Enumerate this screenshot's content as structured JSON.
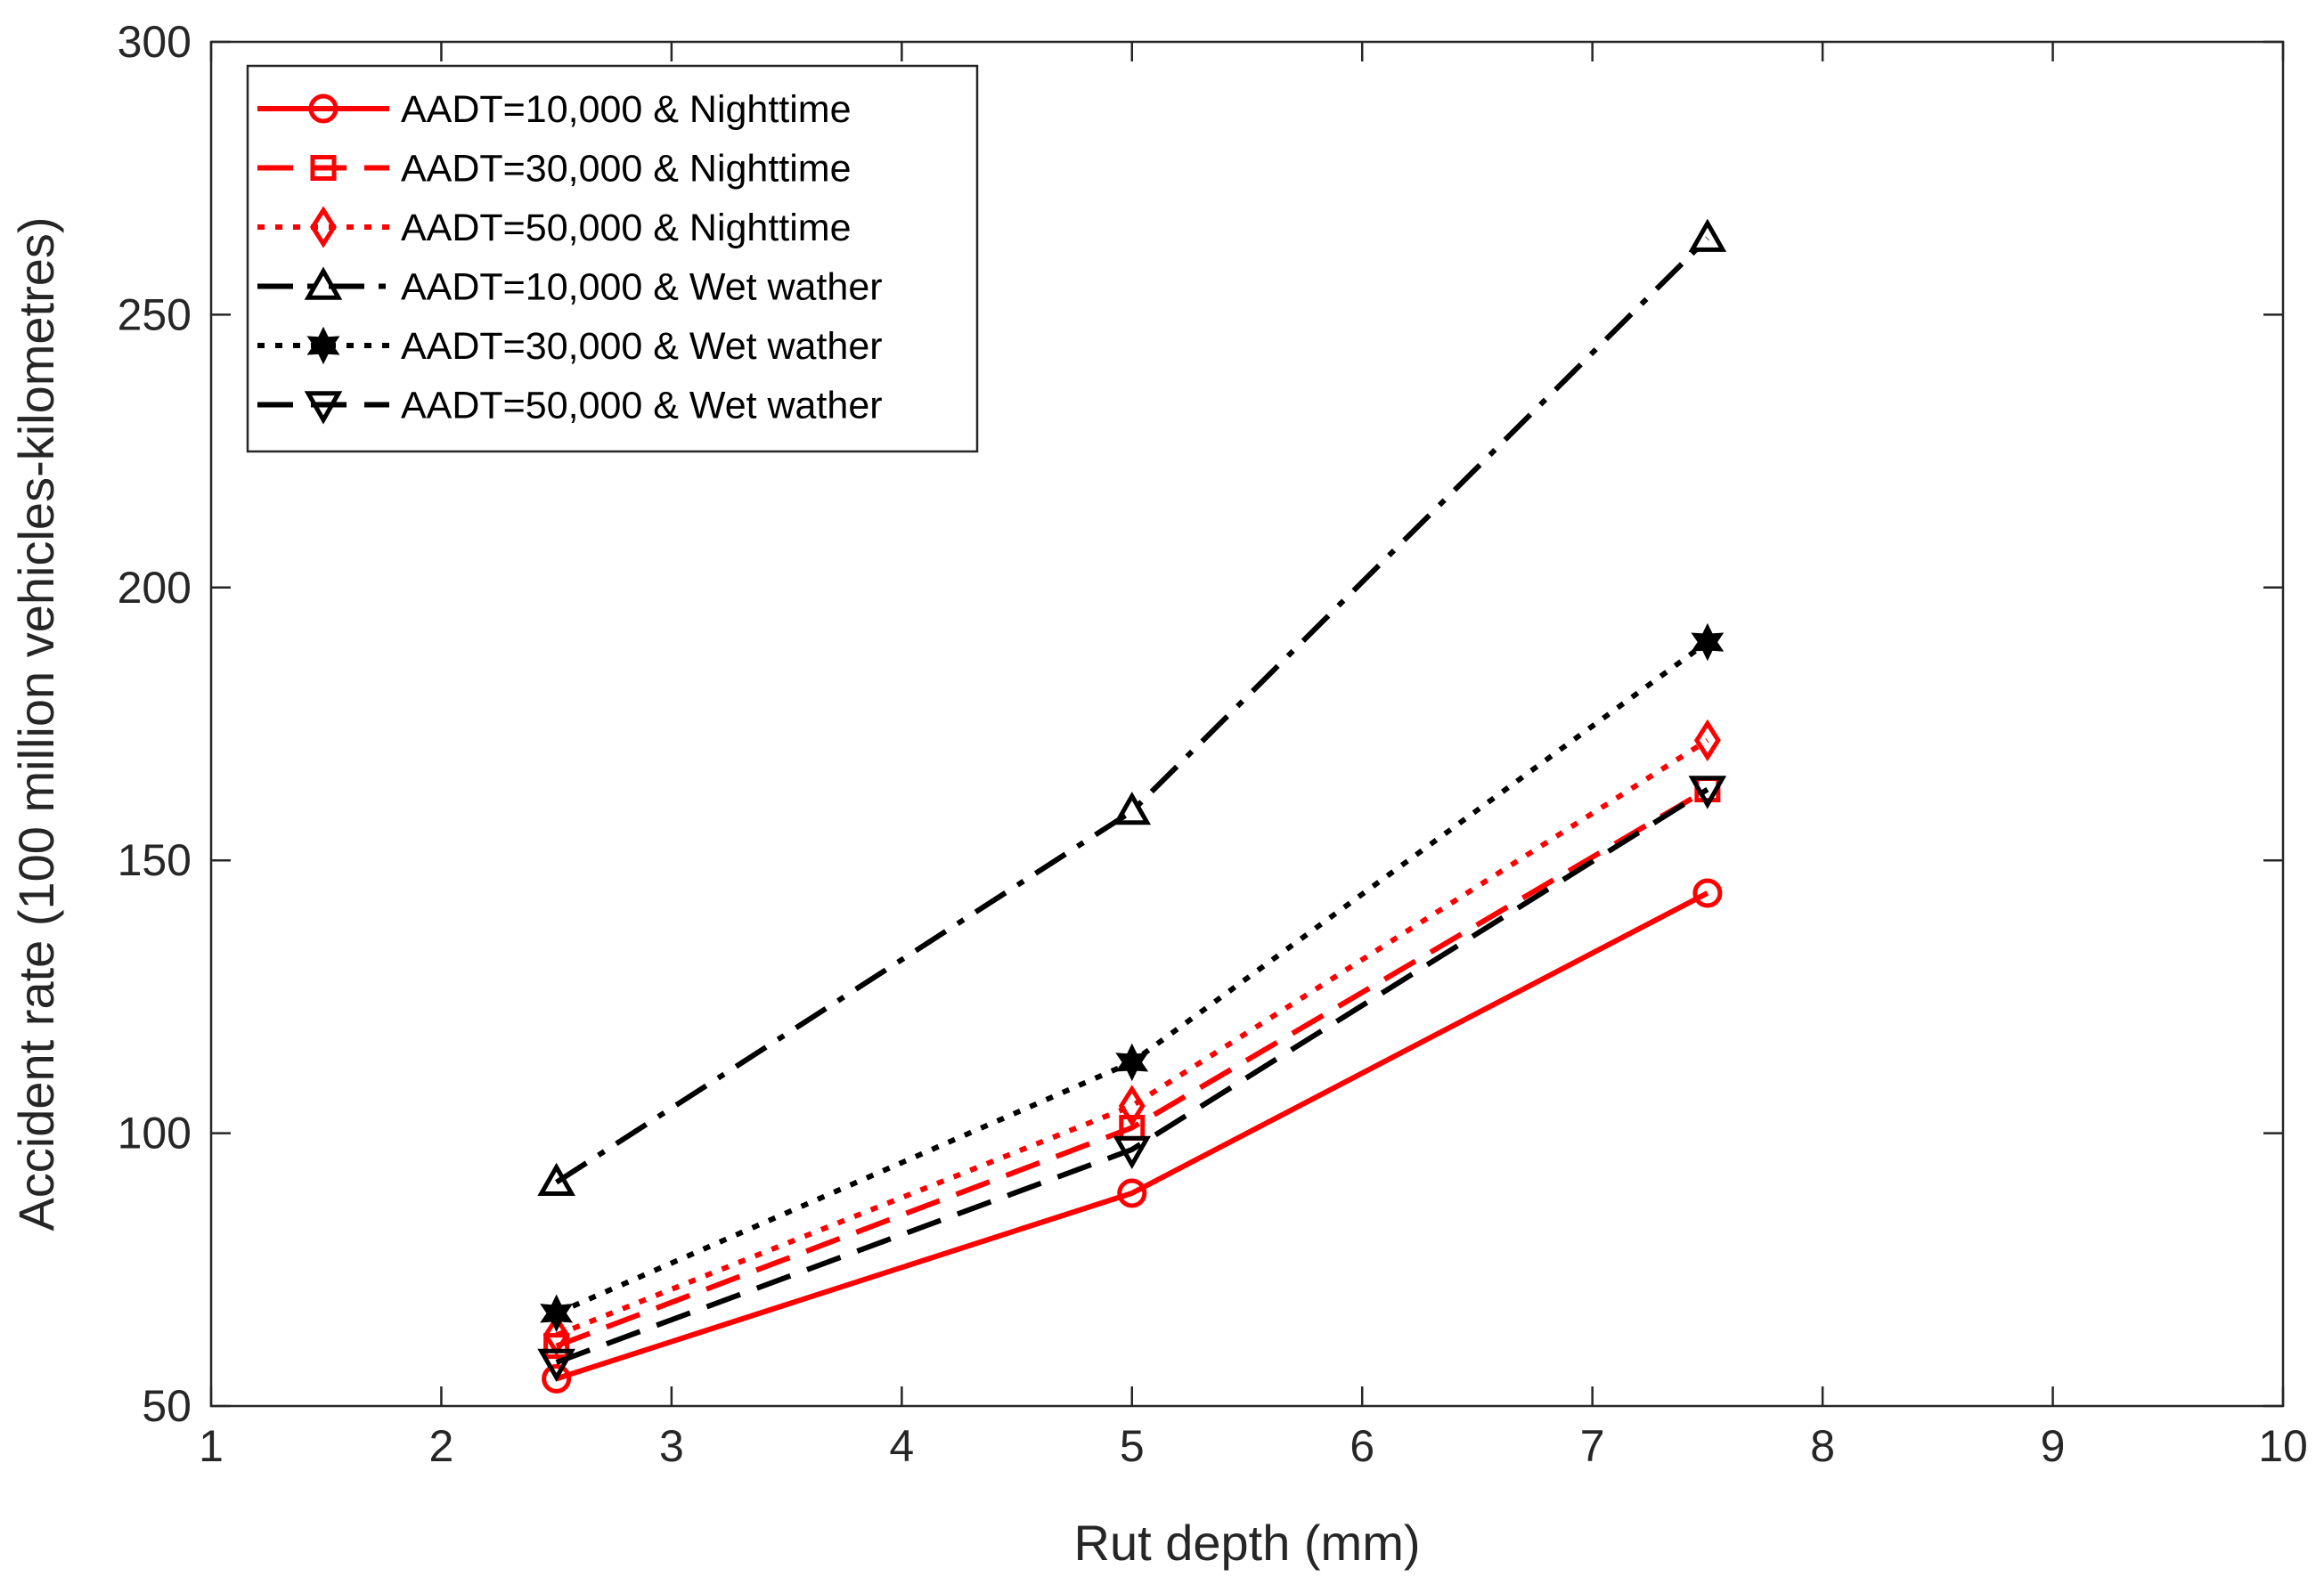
{
  "chart_data": {
    "type": "line",
    "title": "",
    "xlabel": "Rut depth (mm)",
    "ylabel": "Accident rate (100 million vehicles-kilometres)",
    "xlim": [
      1,
      10
    ],
    "ylim": [
      50,
      300
    ],
    "xticks": [
      1,
      2,
      3,
      4,
      5,
      6,
      7,
      8,
      9,
      10
    ],
    "yticks": [
      50,
      100,
      150,
      200,
      250,
      300
    ],
    "grid": false,
    "legend_position": "top-left",
    "x": [
      2.5,
      5,
      7.5
    ],
    "series": [
      {
        "name": "AADT=10,000 & Nighttime",
        "color": "#ff0000",
        "line": "solid",
        "marker": "circle",
        "values": [
          55,
          89,
          144
        ]
      },
      {
        "name": "AADT=30,000 & Nighttime",
        "color": "#ff0000",
        "line": "dashed",
        "marker": "square",
        "values": [
          61,
          101,
          163
        ]
      },
      {
        "name": "AADT=50,000 & Nighttime",
        "color": "#ff0000",
        "line": "dotted",
        "marker": "diamond",
        "values": [
          63,
          105,
          172
        ]
      },
      {
        "name": "AADT=10,000 & Wet wather",
        "color": "#000000",
        "line": "dashdot",
        "marker": "triangle-up",
        "values": [
          91,
          159,
          264
        ]
      },
      {
        "name": "AADT=30,000 & Wet wather",
        "color": "#000000",
        "line": "dotted",
        "marker": "hexagram",
        "values": [
          67,
          113,
          190
        ]
      },
      {
        "name": "AADT=50,000 & Wet wather",
        "color": "#000000",
        "line": "dashed",
        "marker": "triangle-down",
        "values": [
          58,
          97,
          163
        ]
      }
    ]
  }
}
